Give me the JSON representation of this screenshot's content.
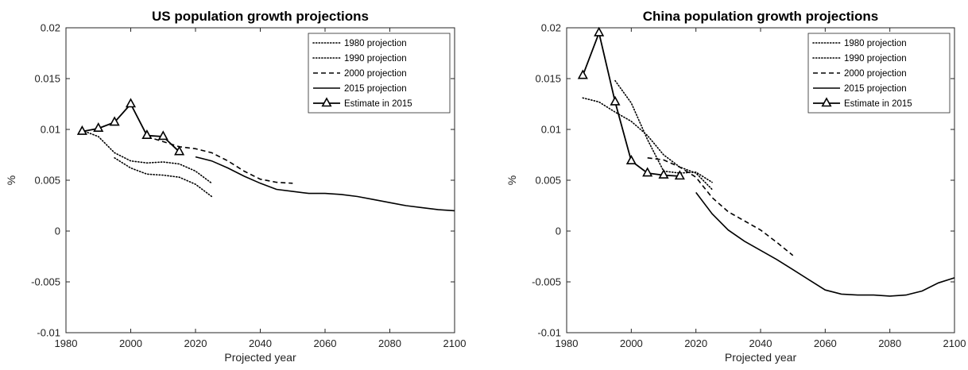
{
  "chart_data": [
    {
      "type": "line",
      "title": "US population growth projections",
      "xlabel": "Projected year",
      "ylabel": "%",
      "xlim": [
        1980,
        2100
      ],
      "ylim": [
        -0.01,
        0.02
      ],
      "xticks": [
        "1980",
        "2000",
        "2020",
        "2040",
        "2060",
        "2080",
        "2100"
      ],
      "yticks": [
        "-0.01",
        "-0.005",
        "0",
        "0.005",
        "0.01",
        "0.015",
        "0.02"
      ],
      "grid": false,
      "legend_position": "top-right",
      "series": [
        {
          "name": "1980 projection",
          "style": "dotted",
          "x": [
            1985,
            1990,
            1995,
            2000,
            2005,
            2010,
            2015,
            2020,
            2025
          ],
          "y": [
            0.0099,
            0.0093,
            0.0077,
            0.0069,
            0.0067,
            0.0068,
            0.0066,
            0.0059,
            0.0047
          ]
        },
        {
          "name": "1990 projection",
          "style": "dash-dot-dotted",
          "x": [
            1995,
            2000,
            2005,
            2010,
            2015,
            2020,
            2025
          ],
          "y": [
            0.0072,
            0.0062,
            0.0056,
            0.0055,
            0.0053,
            0.0046,
            0.0034
          ]
        },
        {
          "name": "2000 projection",
          "style": "dashed",
          "x": [
            2005,
            2010,
            2015,
            2020,
            2025,
            2030,
            2035,
            2040,
            2045,
            2050
          ],
          "y": [
            0.0093,
            0.0088,
            0.0083,
            0.0081,
            0.0077,
            0.0069,
            0.0059,
            0.0051,
            0.0048,
            0.0047
          ]
        },
        {
          "name": "2015 projection",
          "style": "solid",
          "x": [
            2020,
            2025,
            2030,
            2035,
            2040,
            2045,
            2050,
            2055,
            2060,
            2065,
            2070,
            2075,
            2080,
            2085,
            2090,
            2095,
            2100
          ],
          "y": [
            0.0073,
            0.0069,
            0.0062,
            0.0054,
            0.0047,
            0.0041,
            0.0039,
            0.0037,
            0.0037,
            0.0036,
            0.0034,
            0.0031,
            0.0028,
            0.0025,
            0.0023,
            0.0021,
            0.002
          ]
        },
        {
          "name": "Estimate in 2015",
          "style": "solid-triangle",
          "x": [
            1985,
            1990,
            1995,
            2000,
            2005,
            2010,
            2015
          ],
          "y": [
            0.0098,
            0.0101,
            0.0107,
            0.0125,
            0.0094,
            0.0093,
            0.0078
          ]
        }
      ]
    },
    {
      "type": "line",
      "title": "China population growth projections",
      "xlabel": "Projected year",
      "ylabel": "%",
      "xlim": [
        1980,
        2100
      ],
      "ylim": [
        -0.01,
        0.02
      ],
      "xticks": [
        "1980",
        "2000",
        "2020",
        "2040",
        "2060",
        "2080",
        "2100"
      ],
      "yticks": [
        "-0.01",
        "-0.005",
        "0",
        "0.005",
        "0.01",
        "0.015",
        "0.02"
      ],
      "grid": false,
      "legend_position": "top-right",
      "series": [
        {
          "name": "1980 projection",
          "style": "dotted",
          "x": [
            1985,
            1990,
            1995,
            2000,
            2005,
            2010,
            2015,
            2020,
            2025
          ],
          "y": [
            0.0131,
            0.0127,
            0.0117,
            0.0108,
            0.0094,
            0.0075,
            0.0063,
            0.0057,
            0.0041
          ]
        },
        {
          "name": "1990 projection",
          "style": "dash-dot-dotted",
          "x": [
            1995,
            2000,
            2005,
            2010,
            2015,
            2020,
            2025
          ],
          "y": [
            0.0148,
            0.0126,
            0.009,
            0.0059,
            0.0057,
            0.0058,
            0.0048
          ]
        },
        {
          "name": "2000 projection",
          "style": "dashed",
          "x": [
            2005,
            2010,
            2015,
            2020,
            2025,
            2030,
            2035,
            2040,
            2045,
            2050
          ],
          "y": [
            0.0072,
            0.007,
            0.0063,
            0.0053,
            0.0033,
            0.0019,
            0.001,
            0.0001,
            -0.0011,
            -0.0024
          ]
        },
        {
          "name": "2015 projection",
          "style": "solid",
          "x": [
            2020,
            2025,
            2030,
            2035,
            2040,
            2045,
            2050,
            2055,
            2060,
            2065,
            2070,
            2075,
            2080,
            2085,
            2090,
            2095,
            2100
          ],
          "y": [
            0.0038,
            0.0017,
            0.0001,
            -0.001,
            -0.0019,
            -0.0028,
            -0.0038,
            -0.0048,
            -0.0058,
            -0.0062,
            -0.0063,
            -0.0063,
            -0.0064,
            -0.0063,
            -0.0059,
            -0.0051,
            -0.0046
          ]
        },
        {
          "name": "Estimate in 2015",
          "style": "solid-triangle",
          "x": [
            1985,
            1990,
            1995,
            2000,
            2005,
            2010,
            2015
          ],
          "y": [
            0.0153,
            0.0195,
            0.0127,
            0.0069,
            0.0057,
            0.0055,
            0.0054
          ]
        }
      ]
    }
  ]
}
